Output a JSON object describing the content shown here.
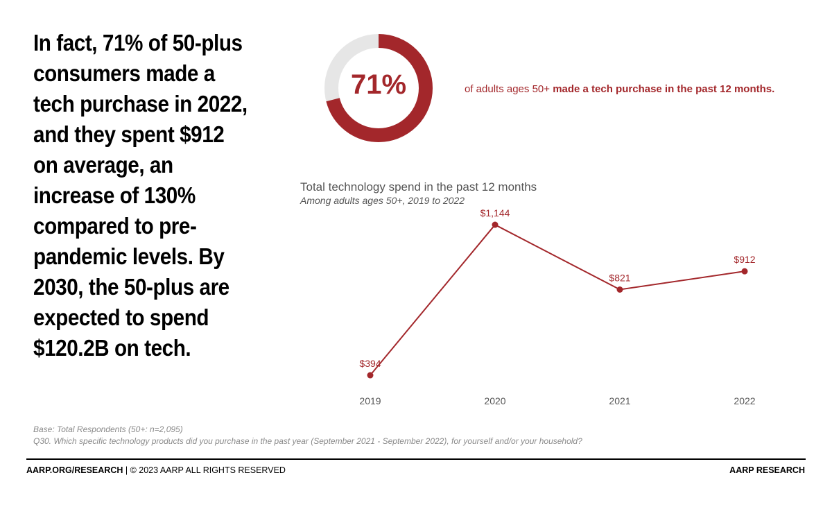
{
  "headline": "In fact, 71% of 50-plus consumers made a tech purchase in 2022, and they spent $912 on average, an increase of 130% compared to pre-pandemic levels. By 2030, the 50-plus are expected to spend $120.2B on tech.",
  "stat": {
    "value_label": "71%",
    "value": 71,
    "text_regular": "of adults ages 50+ ",
    "text_bold": "made a tech purchase in the past 12 months."
  },
  "chart_data": {
    "type": "line",
    "title": "Total technology spend in the past 12 months",
    "subtitle": "Among adults ages 50+, 2019 to 2022",
    "categories": [
      "2019",
      "2020",
      "2021",
      "2022"
    ],
    "series": [
      {
        "values": [
          394,
          1144,
          821,
          912
        ],
        "labels": [
          "$394",
          "$1,144",
          "$821",
          "$912"
        ]
      }
    ],
    "ylim": [
      0,
      1400
    ],
    "grid": false,
    "xlabel": "",
    "ylabel": ""
  },
  "footnotes": {
    "base": "Base: Total Respondents (50+: n=2,095)",
    "question": "Q30. Which specific technology products did you purchase in the past year (September 2021 - September 2022), for yourself and/or your household?"
  },
  "footer": {
    "left_bold": "AARP.ORG/RESEARCH",
    "left_rest": " | © 2023 AARP ALL RIGHTS RESERVED",
    "right": "AARP RESEARCH"
  },
  "colors": {
    "accent": "#a3272b",
    "ring_track": "#e6e6e6",
    "muted_text": "#555555",
    "footnote_text": "#8a8a8a"
  }
}
